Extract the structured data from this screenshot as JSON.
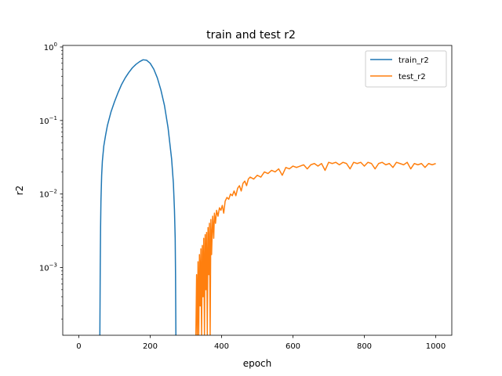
{
  "chart_data": {
    "type": "line",
    "title": "train and test r2",
    "xlabel": "epoch",
    "ylabel": "r2",
    "xlim": [
      -45,
      1045
    ],
    "ylim": [
      0.00012,
      1.05
    ],
    "yscale": "log",
    "grid": false,
    "legend_placement": "top-right",
    "x_ticks": [
      0,
      200,
      400,
      600,
      800,
      1000
    ],
    "y_ticks": [
      {
        "value": 0.001,
        "base": "10",
        "exp": "−3"
      },
      {
        "value": 0.01,
        "base": "10",
        "exp": "−2"
      },
      {
        "value": 0.1,
        "base": "10",
        "exp": "−1"
      },
      {
        "value": 1,
        "base": "10",
        "exp": "0"
      }
    ],
    "series": [
      {
        "name": "train_r2",
        "color": "#1f77b4",
        "x": [
          59,
          60,
          61,
          62,
          64,
          66,
          70,
          75,
          80,
          90,
          100,
          110,
          120,
          130,
          140,
          150,
          160,
          170,
          180,
          190,
          200,
          210,
          220,
          230,
          240,
          250,
          260,
          265,
          268,
          270,
          271,
          272
        ],
        "y": [
          0.00012,
          0.001,
          0.0035,
          0.008,
          0.018,
          0.028,
          0.045,
          0.063,
          0.085,
          0.13,
          0.18,
          0.24,
          0.31,
          0.38,
          0.45,
          0.52,
          0.58,
          0.63,
          0.67,
          0.66,
          0.6,
          0.5,
          0.38,
          0.26,
          0.16,
          0.08,
          0.03,
          0.014,
          0.006,
          0.0025,
          0.0008,
          0.00012
        ]
      },
      {
        "name": "test_r2",
        "color": "#ff7f0e",
        "x": [
          328,
          330,
          332,
          334,
          336,
          338,
          340,
          342,
          344,
          346,
          348,
          350,
          352,
          354,
          356,
          358,
          360,
          362,
          364,
          366,
          368,
          370,
          372,
          375,
          378,
          380,
          383,
          386,
          390,
          394,
          398,
          402,
          406,
          410,
          415,
          420,
          425,
          430,
          435,
          440,
          445,
          450,
          455,
          460,
          465,
          470,
          475,
          480,
          490,
          500,
          510,
          520,
          530,
          540,
          550,
          560,
          570,
          580,
          590,
          600,
          610,
          620,
          630,
          640,
          650,
          660,
          670,
          680,
          690,
          700,
          710,
          720,
          730,
          740,
          750,
          760,
          770,
          780,
          790,
          800,
          810,
          820,
          830,
          840,
          850,
          860,
          870,
          880,
          890,
          900,
          910,
          920,
          930,
          940,
          950,
          960,
          970,
          980,
          990,
          1000
        ],
        "y": [
          0.00012,
          0.0008,
          0.00012,
          0.0012,
          0.00012,
          0.0015,
          0.0003,
          0.0018,
          0.00012,
          0.002,
          0.0004,
          0.0025,
          0.00012,
          0.0028,
          0.0005,
          0.003,
          0.00012,
          0.0035,
          0.0008,
          0.004,
          0.00012,
          0.0045,
          0.0015,
          0.005,
          0.0025,
          0.0055,
          0.004,
          0.006,
          0.005,
          0.0065,
          0.006,
          0.007,
          0.0055,
          0.008,
          0.009,
          0.0085,
          0.01,
          0.0095,
          0.011,
          0.0095,
          0.012,
          0.013,
          0.011,
          0.014,
          0.015,
          0.013,
          0.016,
          0.017,
          0.016,
          0.018,
          0.017,
          0.02,
          0.019,
          0.021,
          0.02,
          0.022,
          0.018,
          0.023,
          0.022,
          0.024,
          0.023,
          0.024,
          0.025,
          0.022,
          0.025,
          0.026,
          0.024,
          0.026,
          0.021,
          0.027,
          0.026,
          0.027,
          0.025,
          0.027,
          0.026,
          0.022,
          0.027,
          0.026,
          0.027,
          0.024,
          0.027,
          0.026,
          0.022,
          0.026,
          0.027,
          0.025,
          0.026,
          0.023,
          0.027,
          0.026,
          0.025,
          0.027,
          0.022,
          0.026,
          0.025,
          0.026,
          0.023,
          0.026,
          0.025,
          0.026
        ]
      }
    ]
  }
}
